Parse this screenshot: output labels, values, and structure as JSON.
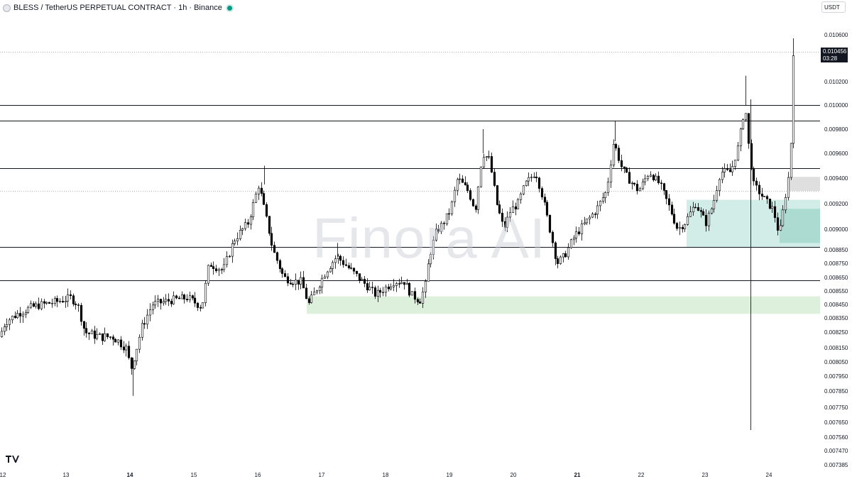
{
  "header": {
    "title": "BLESS / TetherUS PERPETUAL CONTRACT · 1h · Binance",
    "currency": "USDT"
  },
  "watermark": "Finora AI",
  "last_price": {
    "price": "0.010456",
    "countdown": "03:28"
  },
  "chart_data": {
    "type": "candlestick",
    "price_axis_labels": [
      "0.010600",
      "0.010200",
      "0.010000",
      "0.009800",
      "0.009600",
      "0.009400",
      "0.009200",
      "0.009000",
      "0.008850",
      "0.008750",
      "0.008650",
      "0.008550",
      "0.008450",
      "0.008350",
      "0.008250",
      "0.008150",
      "0.008050",
      "0.007950",
      "0.007850",
      "0.007750",
      "0.007650",
      "0.007560",
      "0.007470",
      "0.007385"
    ],
    "time_axis_labels": [
      "12",
      "13",
      "14",
      "15",
      "16",
      "17",
      "18",
      "19",
      "20",
      "21",
      "22",
      "23",
      "24"
    ],
    "horizontal_levels": [
      0.01,
      0.00987,
      0.00948,
      0.0093,
      0.00887,
      0.00863
    ],
    "zones": [
      {
        "from": 0.00838,
        "to": 0.00851,
        "color": "#d8eed8"
      },
      {
        "from": 0.00887,
        "to": 0.00923,
        "color": "#cdeae4"
      },
      {
        "from": 0.0089,
        "to": 0.00916,
        "color": "#a7d9cf"
      },
      {
        "from": 0.0093,
        "to": 0.00941,
        "color": "#dcdcdc"
      }
    ],
    "candle_count": 300
  },
  "colors": {
    "bull": "#ffffff",
    "bear": "#000000",
    "wick": "#000000",
    "grid_level": "#131722"
  }
}
